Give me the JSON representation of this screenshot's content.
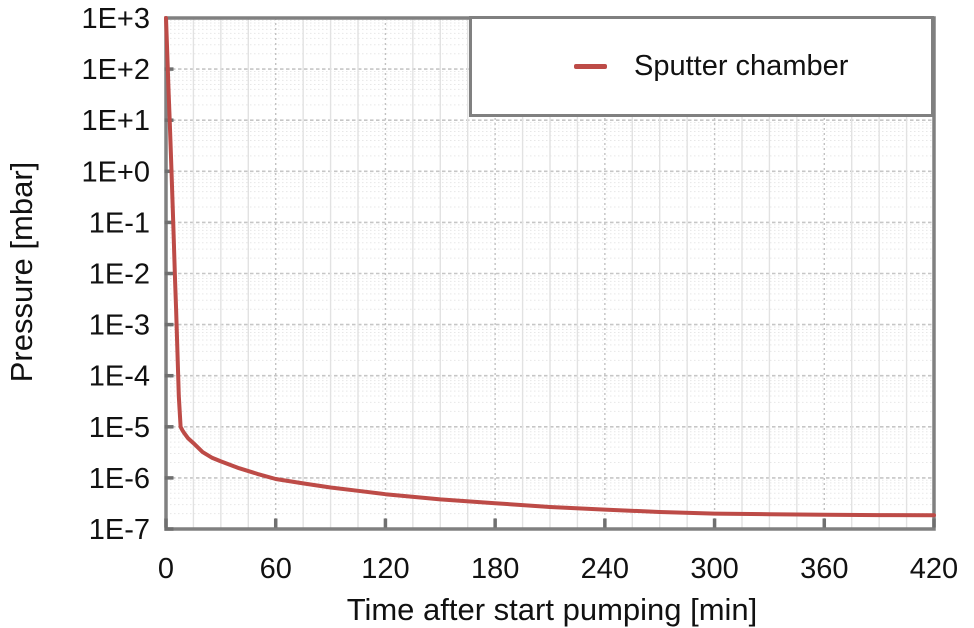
{
  "chart_data": {
    "type": "line",
    "title": "",
    "xlabel": "Time after start pumping [min]",
    "ylabel": "Pressure [mbar]",
    "x_ticks": [
      0,
      60,
      120,
      180,
      240,
      300,
      360,
      420
    ],
    "x_minor_step": 15,
    "xlim": [
      0,
      420
    ],
    "y_scale": "log",
    "ylim_exponents": [
      -7,
      3
    ],
    "y_tick_labels": [
      "1E+3",
      "1E+2",
      "1E+1",
      "1E+0",
      "1E-1",
      "1E-2",
      "1E-3",
      "1E-4",
      "1E-5",
      "1E-6",
      "1E-7"
    ],
    "grid": {
      "h_major": "dashed",
      "h_minor": "dotted",
      "v_major": "dotted",
      "v_minor": "solid"
    },
    "legend": {
      "position": "top-right",
      "bordered": true
    },
    "series": [
      {
        "name": "Sputter chamber",
        "color": "#bd4b47",
        "x": [
          0,
          0.5,
          1,
          1.5,
          2,
          2.5,
          3,
          3.5,
          4,
          4.5,
          5,
          5.5,
          6,
          6.5,
          7,
          7.5,
          8,
          9,
          10,
          12,
          15,
          20,
          25,
          30,
          40,
          50,
          60,
          75,
          90,
          105,
          120,
          150,
          180,
          210,
          240,
          270,
          300,
          330,
          360,
          390,
          420
        ],
        "y": [
          1000,
          320,
          100,
          32,
          10,
          3.2,
          1,
          0.3,
          0.09,
          0.025,
          0.007,
          0.002,
          0.00055,
          0.00015,
          4e-05,
          2e-05,
          1e-05,
          8.5e-06,
          7.5e-06,
          6e-06,
          4.8e-06,
          3.2e-06,
          2.5e-06,
          2.1e-06,
          1.55e-06,
          1.2e-06,
          9.5e-07,
          7.8e-07,
          6.5e-07,
          5.6e-07,
          4.8e-07,
          3.8e-07,
          3.2e-07,
          2.7e-07,
          2.4e-07,
          2.15e-07,
          2e-07,
          1.95e-07,
          1.9e-07,
          1.87e-07,
          1.85e-07
        ]
      }
    ]
  },
  "colors": {
    "series_red": "#bd4b47",
    "plot_border": "#808080",
    "tick_mark": "#6f6f6f",
    "grid_major_h": "#c6c6c6",
    "grid_minor_h": "#e7e7e7",
    "grid_major_v": "#c2c2c2",
    "grid_minor_v": "#e2e2e2",
    "text": "#111111",
    "background": "#ffffff"
  }
}
